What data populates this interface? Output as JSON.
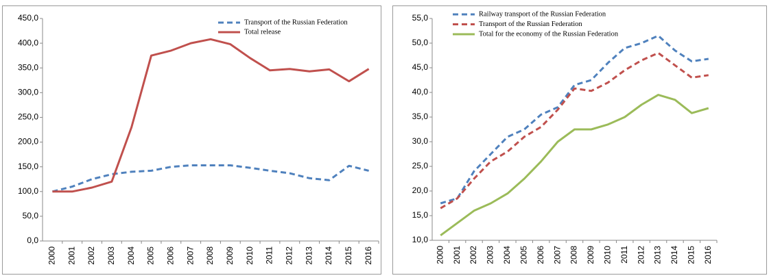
{
  "chart_data": [
    {
      "type": "line",
      "categories": [
        "2000",
        "2001",
        "2002",
        "2003",
        "2004",
        "2005",
        "2006",
        "2007",
        "2008",
        "2009",
        "2010",
        "2011",
        "2012",
        "2013",
        "2014",
        "2015",
        "2016"
      ],
      "series": [
        {
          "name": "Transport of the Russian Federation",
          "color": "#4f81bd",
          "style": "dashed",
          "values": [
            100,
            110,
            125,
            135,
            140,
            142,
            150,
            153,
            153,
            153,
            148,
            142,
            137,
            127,
            123,
            152,
            142
          ]
        },
        {
          "name": "Total release",
          "color": "#c0504d",
          "style": "solid",
          "values": [
            100,
            100,
            108,
            120,
            230,
            375,
            385,
            400,
            408,
            398,
            370,
            345,
            348,
            343,
            347,
            323,
            348
          ]
        }
      ],
      "ylim": [
        0,
        450
      ],
      "yticks": [
        {
          "value": 0,
          "label": "0,0"
        },
        {
          "value": 50,
          "label": "50,0"
        },
        {
          "value": 100,
          "label": "100,0"
        },
        {
          "value": 150,
          "label": "150,0"
        },
        {
          "value": 200,
          "label": "200,0"
        },
        {
          "value": 250,
          "label": "250,0"
        },
        {
          "value": 300,
          "label": "300,0"
        },
        {
          "value": 350,
          "label": "350,0"
        },
        {
          "value": 400,
          "label": "400,0"
        },
        {
          "value": 450,
          "label": "450,0"
        }
      ],
      "grid": false
    },
    {
      "type": "line",
      "categories": [
        "2000",
        "2001",
        "2002",
        "2003",
        "2004",
        "2005",
        "2006",
        "2007",
        "2008",
        "2009",
        "2010",
        "2011",
        "2012",
        "2013",
        "2014",
        "2015",
        "2016"
      ],
      "series": [
        {
          "name": "Railway transport of the Russian Federation",
          "color": "#4f81bd",
          "style": "dashed",
          "values": [
            17.5,
            18.5,
            24,
            27.5,
            31,
            32.5,
            35.5,
            37,
            41.5,
            42.5,
            46,
            49,
            50,
            51.5,
            48.5,
            46.3,
            46.8
          ]
        },
        {
          "name": "Transport of the Russian Federation",
          "color": "#c0504d",
          "style": "dashed",
          "values": [
            16.5,
            18.5,
            22.5,
            26,
            28,
            31,
            33,
            36.5,
            40.8,
            40.3,
            42,
            44.5,
            46.5,
            48,
            45.5,
            43,
            43.5
          ]
        },
        {
          "name": "Total for the economy of the Russian Federation",
          "color": "#9bbb59",
          "style": "solid",
          "values": [
            11,
            13.5,
            16,
            17.5,
            19.5,
            22.5,
            26,
            30,
            32.5,
            32.5,
            33.5,
            35,
            37.5,
            39.5,
            38.5,
            35.8,
            36.8
          ]
        }
      ],
      "ylim": [
        10,
        55
      ],
      "yticks": [
        {
          "value": 10,
          "label": "10,0"
        },
        {
          "value": 15,
          "label": "15,0"
        },
        {
          "value": 20,
          "label": "20,0"
        },
        {
          "value": 25,
          "label": "25,0"
        },
        {
          "value": 30,
          "label": "30,0"
        },
        {
          "value": 35,
          "label": "35,0"
        },
        {
          "value": 40,
          "label": "40,0"
        },
        {
          "value": 45,
          "label": "45,0"
        },
        {
          "value": 50,
          "label": "50,0"
        },
        {
          "value": 55,
          "label": "55,0"
        }
      ],
      "grid": false
    }
  ]
}
